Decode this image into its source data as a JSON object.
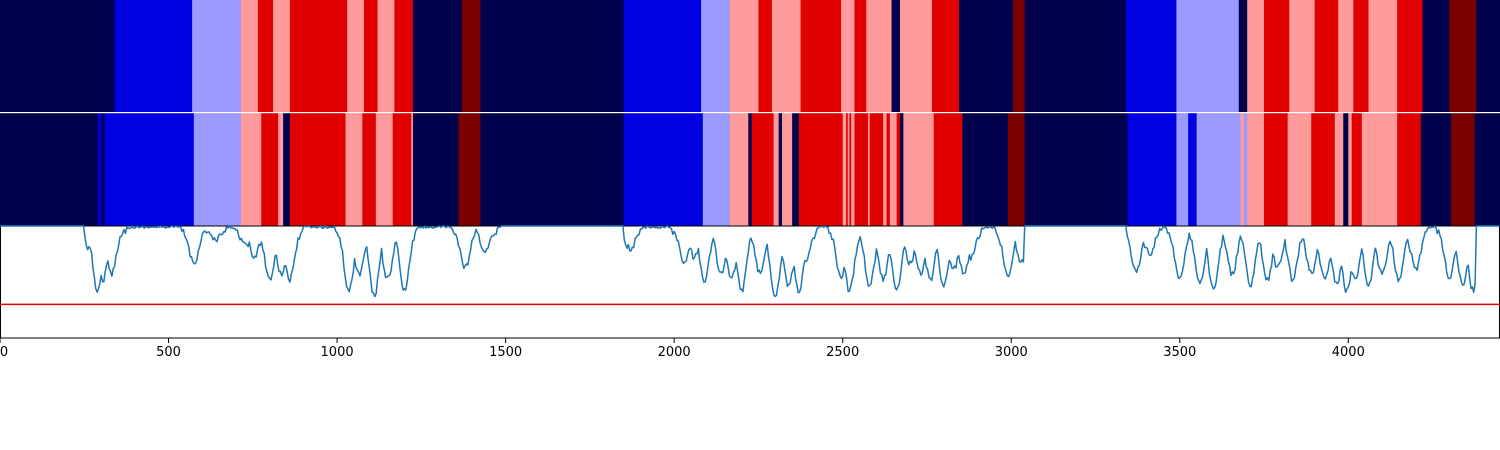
{
  "chart_data": [
    {
      "type": "heatmap",
      "panel": "state-band-top",
      "colors": {
        "0": "#00004d",
        "1": "#0000e0",
        "2": "#9b9bff",
        "3": "#ff9b9b",
        "4": "#e00000",
        "5": "#7d0000"
      },
      "segments": [
        [
          0,
          340,
          0
        ],
        [
          340,
          570,
          1
        ],
        [
          570,
          715,
          2
        ],
        [
          715,
          765,
          3
        ],
        [
          765,
          810,
          4
        ],
        [
          810,
          860,
          3
        ],
        [
          860,
          1030,
          4
        ],
        [
          1030,
          1080,
          3
        ],
        [
          1080,
          1120,
          4
        ],
        [
          1120,
          1170,
          3
        ],
        [
          1170,
          1225,
          4
        ],
        [
          1225,
          1370,
          0
        ],
        [
          1370,
          1425,
          5
        ],
        [
          1425,
          1850,
          0
        ],
        [
          1850,
          2080,
          1
        ],
        [
          2080,
          2165,
          2
        ],
        [
          2165,
          2250,
          3
        ],
        [
          2250,
          2290,
          4
        ],
        [
          2290,
          2375,
          3
        ],
        [
          2375,
          2495,
          4
        ],
        [
          2495,
          2535,
          3
        ],
        [
          2535,
          2570,
          4
        ],
        [
          2570,
          2645,
          3
        ],
        [
          2645,
          2670,
          0
        ],
        [
          2670,
          2765,
          3
        ],
        [
          2765,
          2845,
          4
        ],
        [
          2845,
          3005,
          0
        ],
        [
          3005,
          3040,
          5
        ],
        [
          3040,
          3340,
          0
        ],
        [
          3340,
          3490,
          1
        ],
        [
          3490,
          3675,
          2
        ],
        [
          3675,
          3700,
          0
        ],
        [
          3700,
          3750,
          3
        ],
        [
          3750,
          3825,
          4
        ],
        [
          3825,
          3900,
          3
        ],
        [
          3900,
          3970,
          4
        ],
        [
          3970,
          4015,
          3
        ],
        [
          4015,
          4060,
          4
        ],
        [
          4060,
          4145,
          3
        ],
        [
          4145,
          4220,
          4
        ],
        [
          4220,
          4300,
          0
        ],
        [
          4300,
          4380,
          5
        ],
        [
          4380,
          4450,
          0
        ]
      ]
    },
    {
      "type": "heatmap",
      "panel": "state-band-bottom",
      "segments": [
        [
          0,
          290,
          0
        ],
        [
          290,
          300,
          1
        ],
        [
          300,
          310,
          0
        ],
        [
          310,
          335,
          1
        ],
        [
          335,
          575,
          1
        ],
        [
          575,
          715,
          2
        ],
        [
          715,
          775,
          3
        ],
        [
          775,
          825,
          4
        ],
        [
          825,
          840,
          3
        ],
        [
          840,
          860,
          0
        ],
        [
          860,
          1025,
          4
        ],
        [
          1025,
          1030,
          3
        ],
        [
          1030,
          1075,
          3
        ],
        [
          1075,
          1115,
          4
        ],
        [
          1115,
          1165,
          3
        ],
        [
          1165,
          1220,
          4
        ],
        [
          1220,
          1225,
          3
        ],
        [
          1225,
          1360,
          0
        ],
        [
          1360,
          1425,
          5
        ],
        [
          1425,
          1850,
          0
        ],
        [
          1850,
          2085,
          1
        ],
        [
          2085,
          2165,
          2
        ],
        [
          2165,
          2220,
          3
        ],
        [
          2220,
          2230,
          0
        ],
        [
          2230,
          2295,
          4
        ],
        [
          2295,
          2310,
          3
        ],
        [
          2310,
          2320,
          0
        ],
        [
          2320,
          2350,
          3
        ],
        [
          2350,
          2370,
          0
        ],
        [
          2370,
          2500,
          4
        ],
        [
          2500,
          2510,
          3
        ],
        [
          2510,
          2515,
          4
        ],
        [
          2515,
          2520,
          3
        ],
        [
          2520,
          2525,
          4
        ],
        [
          2525,
          2535,
          3
        ],
        [
          2535,
          2575,
          4
        ],
        [
          2575,
          2580,
          3
        ],
        [
          2580,
          2620,
          4
        ],
        [
          2620,
          2630,
          3
        ],
        [
          2630,
          2640,
          4
        ],
        [
          2640,
          2660,
          3
        ],
        [
          2660,
          2670,
          4
        ],
        [
          2670,
          2680,
          0
        ],
        [
          2680,
          2770,
          3
        ],
        [
          2770,
          2855,
          4
        ],
        [
          2855,
          2990,
          0
        ],
        [
          2990,
          3040,
          5
        ],
        [
          3040,
          3345,
          0
        ],
        [
          3345,
          3490,
          1
        ],
        [
          3490,
          3525,
          2
        ],
        [
          3525,
          3550,
          1
        ],
        [
          3550,
          3680,
          2
        ],
        [
          3680,
          3690,
          3
        ],
        [
          3690,
          3700,
          2
        ],
        [
          3700,
          3750,
          3
        ],
        [
          3750,
          3820,
          4
        ],
        [
          3820,
          3890,
          3
        ],
        [
          3890,
          3960,
          4
        ],
        [
          3960,
          3985,
          3
        ],
        [
          3985,
          4000,
          0
        ],
        [
          4000,
          4010,
          3
        ],
        [
          4010,
          4040,
          4
        ],
        [
          4040,
          4145,
          3
        ],
        [
          4145,
          4215,
          4
        ],
        [
          4215,
          4305,
          0
        ],
        [
          4305,
          4375,
          5
        ],
        [
          4375,
          4450,
          0
        ]
      ]
    },
    {
      "type": "line",
      "panel": "signal",
      "ylim": [
        0,
        1
      ],
      "threshold": 0.3,
      "line_color": "#1f77b4",
      "threshold_color": "#e00000",
      "quiet": [
        [
          0,
          250
        ],
        [
          1485,
          1850
        ],
        [
          3040,
          3340
        ],
        [
          4380,
          4450
        ]
      ],
      "dips": [
        [
          270,
          0.8
        ],
        [
          290,
          0.45
        ],
        [
          305,
          0.55
        ],
        [
          330,
          0.6
        ],
        [
          340,
          0.85
        ],
        [
          575,
          0.7
        ],
        [
          640,
          0.9
        ],
        [
          730,
          0.85
        ],
        [
          755,
          0.75
        ],
        [
          800,
          0.55
        ],
        [
          835,
          0.6
        ],
        [
          860,
          0.55
        ],
        [
          1035,
          0.45
        ],
        [
          1065,
          0.6
        ],
        [
          1110,
          0.4
        ],
        [
          1150,
          0.55
        ],
        [
          1200,
          0.45
        ],
        [
          1380,
          0.65
        ],
        [
          1440,
          0.8
        ],
        [
          1870,
          0.82
        ],
        [
          2030,
          0.7
        ],
        [
          2060,
          0.75
        ],
        [
          2090,
          0.55
        ],
        [
          2140,
          0.6
        ],
        [
          2170,
          0.55
        ],
        [
          2200,
          0.45
        ],
        [
          2255,
          0.6
        ],
        [
          2300,
          0.4
        ],
        [
          2340,
          0.5
        ],
        [
          2370,
          0.45
        ],
        [
          2390,
          0.7
        ],
        [
          2495,
          0.55
        ],
        [
          2520,
          0.45
        ],
        [
          2580,
          0.5
        ],
        [
          2620,
          0.55
        ],
        [
          2660,
          0.45
        ],
        [
          2700,
          0.7
        ],
        [
          2730,
          0.6
        ],
        [
          2760,
          0.55
        ],
        [
          2800,
          0.5
        ],
        [
          2830,
          0.65
        ],
        [
          2860,
          0.6
        ],
        [
          2880,
          0.75
        ],
        [
          2990,
          0.6
        ],
        [
          3030,
          0.7
        ],
        [
          3370,
          0.62
        ],
        [
          3410,
          0.78
        ],
        [
          3500,
          0.55
        ],
        [
          3560,
          0.5
        ],
        [
          3600,
          0.45
        ],
        [
          3655,
          0.6
        ],
        [
          3710,
          0.5
        ],
        [
          3760,
          0.55
        ],
        [
          3790,
          0.65
        ],
        [
          3835,
          0.55
        ],
        [
          3890,
          0.6
        ],
        [
          3930,
          0.55
        ],
        [
          3965,
          0.5
        ],
        [
          3995,
          0.45
        ],
        [
          4020,
          0.55
        ],
        [
          4060,
          0.5
        ],
        [
          4100,
          0.6
        ],
        [
          4150,
          0.55
        ],
        [
          4200,
          0.65
        ],
        [
          4300,
          0.55
        ],
        [
          4340,
          0.5
        ],
        [
          4370,
          0.45
        ]
      ]
    },
    {
      "type": "axis",
      "panel": "x-axis",
      "xlim": [
        0,
        4450
      ],
      "xticks": [
        0,
        500,
        1000,
        1500,
        2000,
        2500,
        3000,
        3500,
        4000
      ],
      "xtick_labels": [
        "0",
        "500",
        "1000",
        "1500",
        "2000",
        "2500",
        "3000",
        "3500",
        "4000"
      ]
    }
  ]
}
